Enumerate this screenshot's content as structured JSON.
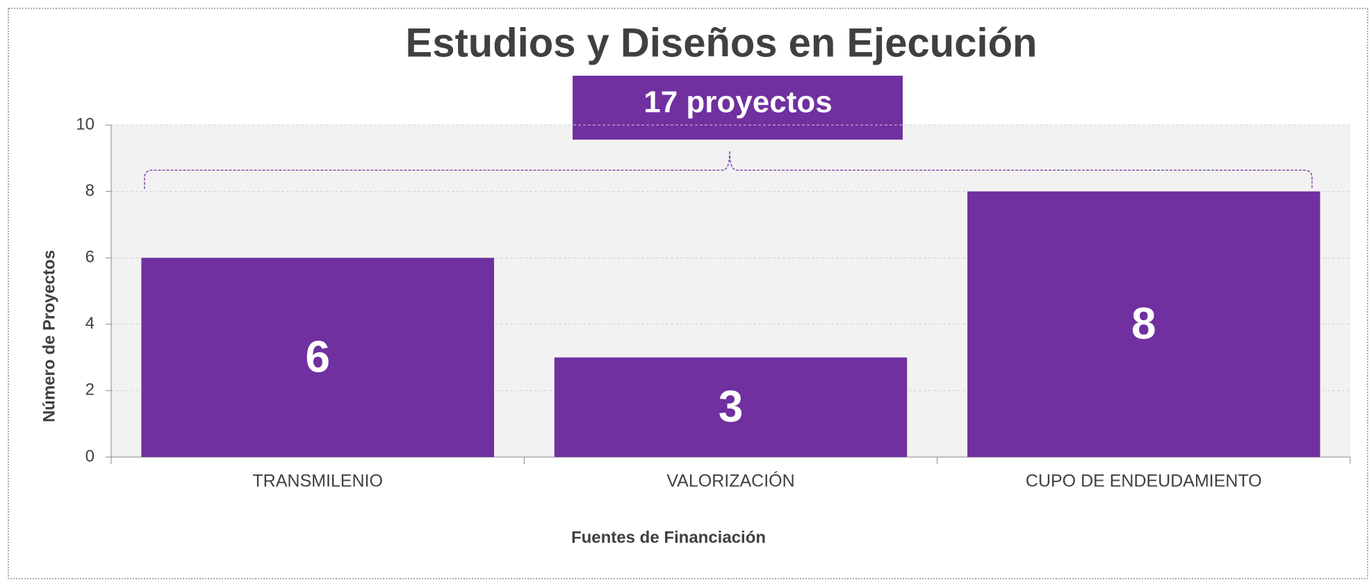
{
  "chart_data": {
    "type": "bar",
    "title": "Estudios y Diseños en Ejecución",
    "annotation": "17 proyectos",
    "categories": [
      "TRANSMILENIO",
      "VALORIZACIÓN",
      "CUPO DE ENDEUDAMIENTO"
    ],
    "values": [
      6,
      3,
      8
    ],
    "color": "#7030a0",
    "xlabel": "Fuentes de Financiación",
    "ylabel": "Número de Proyectos",
    "ylim": [
      0,
      10
    ],
    "yticks": [
      0,
      2,
      4,
      6,
      8,
      10
    ],
    "grid": true
  }
}
